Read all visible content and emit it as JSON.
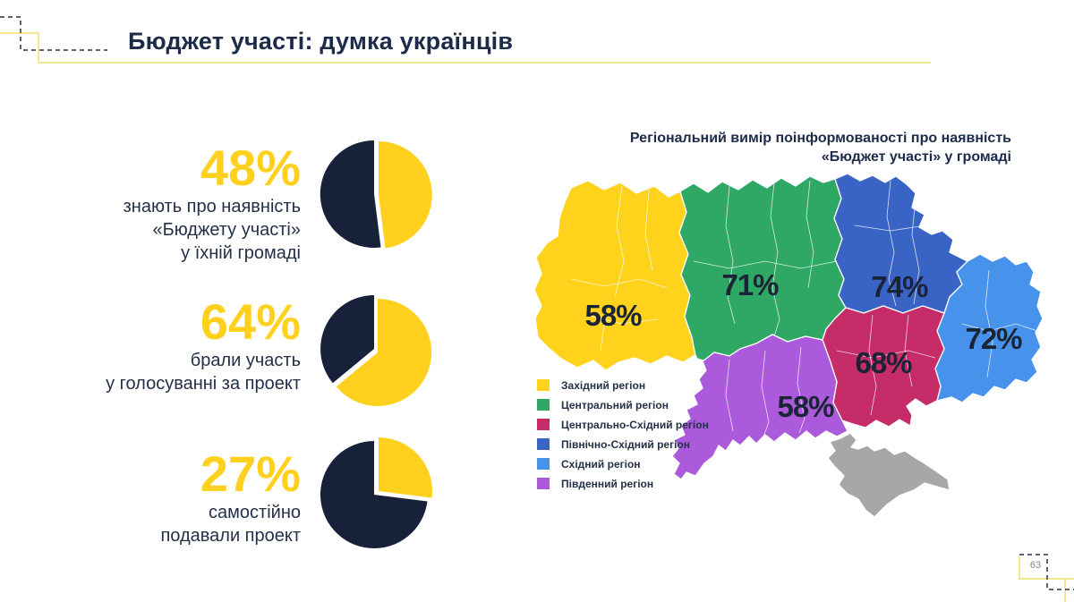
{
  "slide": {
    "title": "Бюджет участі: думка українців",
    "page_number": "63"
  },
  "colors": {
    "navy": "#17223A",
    "yellow": "#FFD11E",
    "title_navy": "#1C2B4A",
    "label_navy": "#243047",
    "decoration_yellow": "#F2E88E",
    "decoration_gray": "#5B6470",
    "page_number_gray": "#7E858F",
    "map_label_navy": "#1B2437"
  },
  "stats": [
    {
      "value_label": "48%",
      "percent": 48,
      "lines": [
        "знають про наявність",
        "«Бюджету участі»",
        "у їхній громаді"
      ]
    },
    {
      "value_label": "64%",
      "percent": 64,
      "lines": [
        "брали участь",
        "у голосуванні за проект",
        ""
      ]
    },
    {
      "value_label": "27%",
      "percent": 27,
      "lines": [
        "самостійно",
        "подавали проект",
        ""
      ]
    }
  ],
  "map": {
    "title_line1": "Регіональний вимір поінформованості про наявність",
    "title_line2": "«Бюджет участі» у громаді",
    "crimea_color": "#A7A7A7",
    "regions": [
      {
        "id": "west",
        "name": "Західний регіон",
        "value": "58%",
        "color": "#FFD21B"
      },
      {
        "id": "central",
        "name": "Центральний регіон",
        "value": "71%",
        "color": "#2FA765"
      },
      {
        "id": "central-east",
        "name": "Центрально-Східний регіон",
        "value": "68%",
        "color": "#C52C68"
      },
      {
        "id": "north-east",
        "name": "Північно-Східний регіон",
        "value": "74%",
        "color": "#3A63C6"
      },
      {
        "id": "east",
        "name": "Східний регіон",
        "value": "72%",
        "color": "#4793EC"
      },
      {
        "id": "south",
        "name": "Південний регіон",
        "value": "58%",
        "color": "#AA5ADA"
      }
    ]
  },
  "chart_data": [
    {
      "type": "pie",
      "title": "знають про наявність «Бюджету участі» у їхній громаді",
      "values": [
        48,
        52
      ],
      "colors": [
        "#FFD11E",
        "#17223A"
      ],
      "legend_position": "none"
    },
    {
      "type": "pie",
      "title": "брали участь у голосуванні за проект",
      "values": [
        64,
        36
      ],
      "colors": [
        "#FFD11E",
        "#17223A"
      ],
      "legend_position": "none"
    },
    {
      "type": "pie",
      "title": "самостійно подавали проект",
      "values": [
        27,
        73
      ],
      "colors": [
        "#FFD11E",
        "#17223A"
      ],
      "legend_position": "none"
    },
    {
      "type": "heatmap",
      "subtype": "choropleth-map",
      "title": "Регіональний вимір поінформованості про наявність «Бюджет участі» у громаді",
      "categories": [
        "Західний регіон",
        "Центральний регіон",
        "Центрально-Східний регіон",
        "Північно-Східний регіон",
        "Східний регіон",
        "Південний регіон"
      ],
      "values": [
        58,
        71,
        68,
        74,
        72,
        58
      ],
      "legend_position": "left"
    }
  ]
}
